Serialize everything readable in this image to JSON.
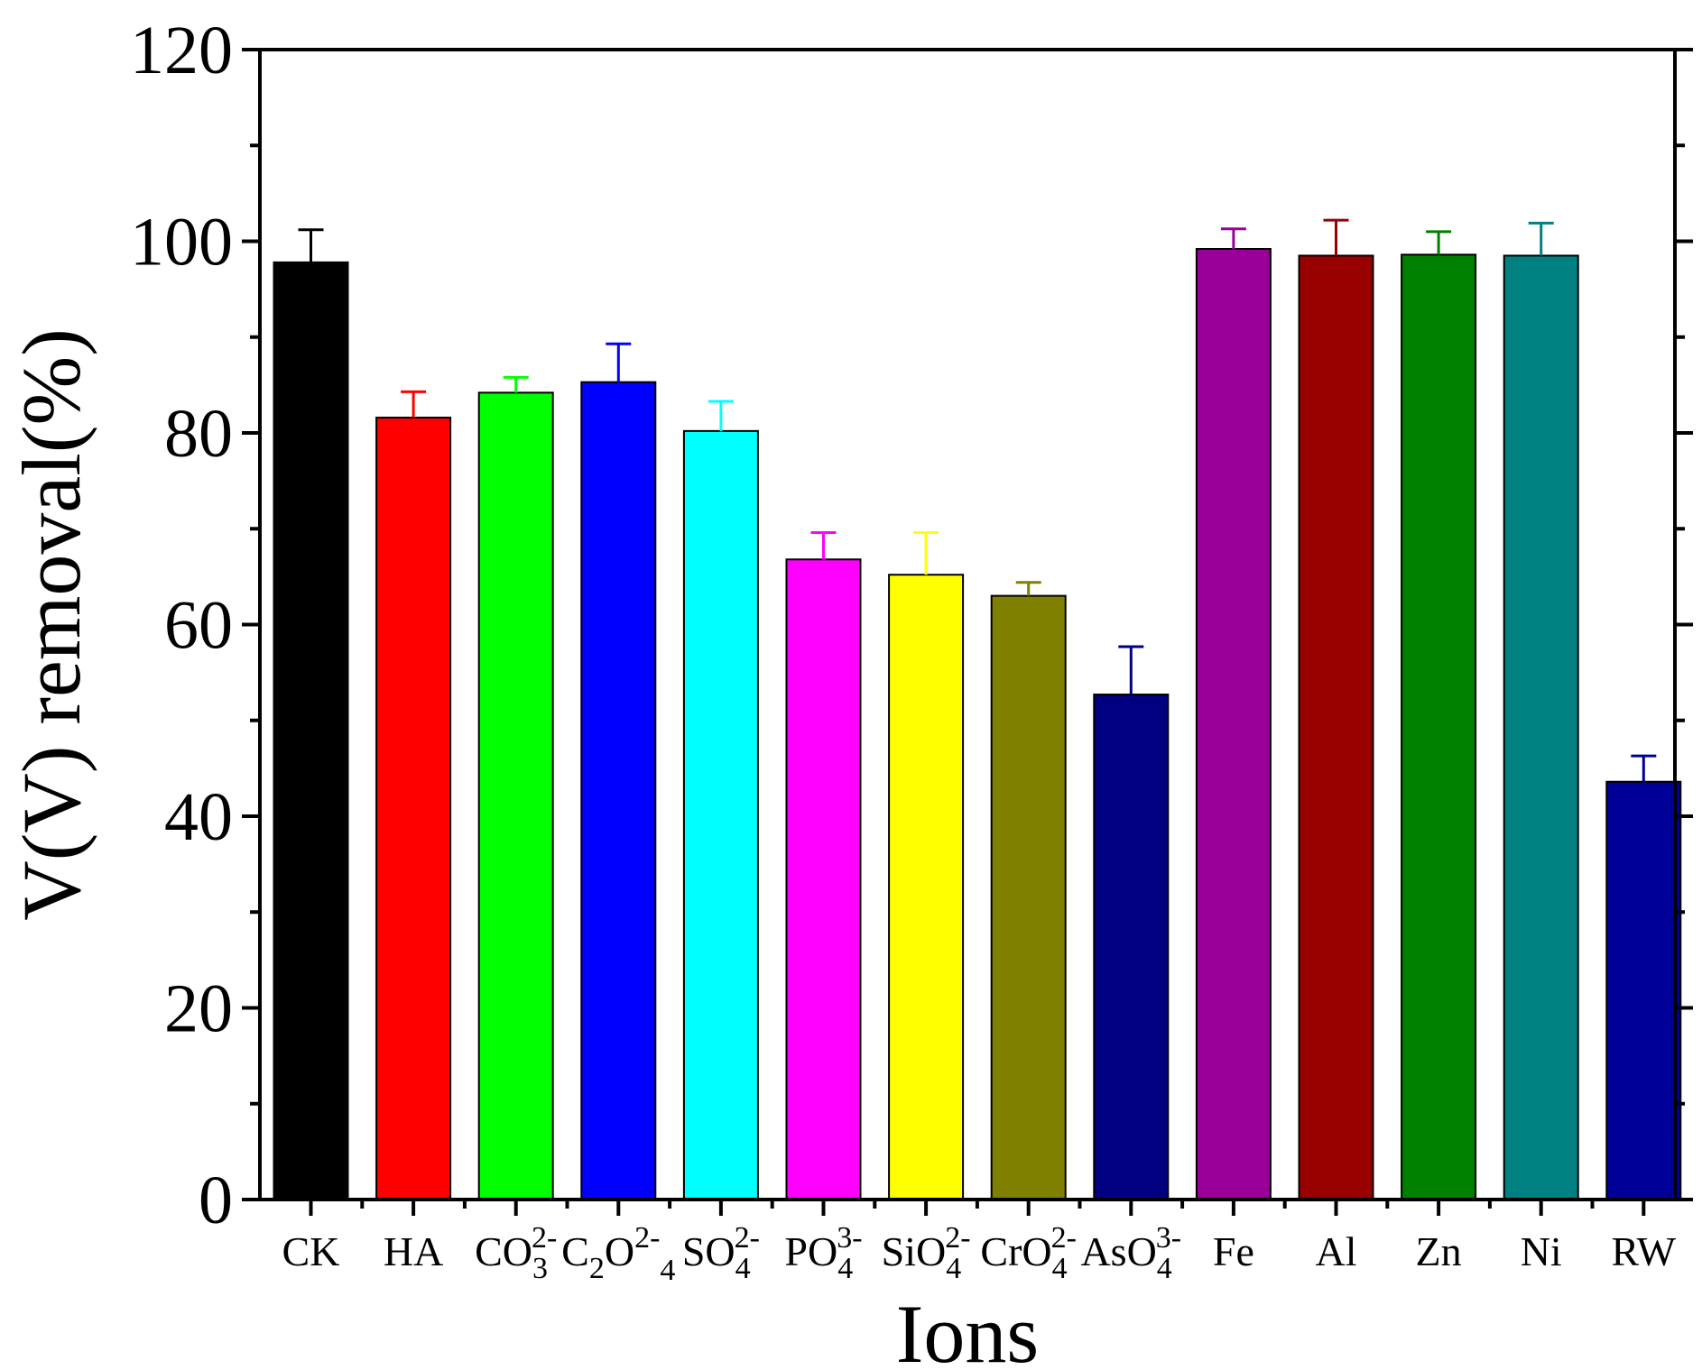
{
  "chart_data": {
    "type": "bar",
    "title": "",
    "xlabel": "Ions",
    "ylabel": "V(V) removal(%)",
    "ylim": [
      0,
      120
    ],
    "yticks": [
      0,
      20,
      40,
      60,
      80,
      100,
      120
    ],
    "grid": false,
    "categories": [
      {
        "id": "CK",
        "base": "CK",
        "sub": "",
        "sup": ""
      },
      {
        "id": "HA",
        "base": "HA",
        "sub": "",
        "sup": ""
      },
      {
        "id": "CO3",
        "base": "CO",
        "sub": "3",
        "sup": "2-"
      },
      {
        "id": "C2O4",
        "base": "C",
        "sub": "2",
        "base2": "O",
        "sub2": "4",
        "sup": "2-"
      },
      {
        "id": "SO4",
        "base": "SO",
        "sub": "4",
        "sup": "2-"
      },
      {
        "id": "PO4",
        "base": "PO",
        "sub": "4",
        "sup": "3-"
      },
      {
        "id": "SiO4",
        "base": "SiO",
        "sub": "4",
        "sup": "2-"
      },
      {
        "id": "CrO4",
        "base": "CrO",
        "sub": "4",
        "sup": "2-"
      },
      {
        "id": "AsO4",
        "base": "AsO",
        "sub": "4",
        "sup": "3-"
      },
      {
        "id": "Fe",
        "base": "Fe",
        "sub": "",
        "sup": ""
      },
      {
        "id": "Al",
        "base": "Al",
        "sub": "",
        "sup": ""
      },
      {
        "id": "Zn",
        "base": "Zn",
        "sub": "",
        "sup": ""
      },
      {
        "id": "Ni",
        "base": "Ni",
        "sub": "",
        "sup": ""
      },
      {
        "id": "RW",
        "base": "RW",
        "sub": "",
        "sup": ""
      }
    ],
    "values": [
      97.8,
      81.6,
      84.2,
      85.3,
      80.2,
      66.8,
      65.2,
      63.0,
      52.7,
      99.2,
      98.5,
      98.6,
      98.5,
      43.6
    ],
    "errors": [
      3.4,
      2.7,
      1.6,
      4.0,
      3.1,
      2.8,
      4.4,
      1.4,
      5.0,
      2.1,
      3.7,
      2.4,
      3.4,
      2.7
    ],
    "colors": [
      "#000000",
      "#ff0000",
      "#00ff00",
      "#0000ff",
      "#00ffff",
      "#ff00ff",
      "#ffff00",
      "#808000",
      "#000080",
      "#990099",
      "#990000",
      "#008000",
      "#008080",
      "#000099"
    ]
  }
}
